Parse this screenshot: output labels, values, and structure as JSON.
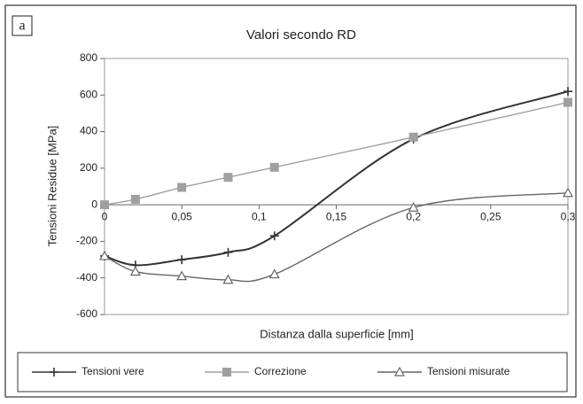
{
  "chart_data": {
    "type": "line",
    "title": "Valori secondo RD",
    "annotation": "a",
    "xlabel": "Distanza dalla superficie [mm]",
    "ylabel": "Tensioni Residue [MPa]",
    "x": [
      0,
      0.02,
      0.05,
      0.08,
      0.11,
      0.2,
      0.3
    ],
    "series": [
      {
        "name": "Tensioni vere",
        "color": "#333333",
        "marker": "plus",
        "values": [
          -280,
          -330,
          -300,
          -260,
          -170,
          360,
          620
        ]
      },
      {
        "name": "Correzione",
        "color": "#a0a0a0",
        "marker": "square",
        "values": [
          0,
          30,
          95,
          150,
          205,
          370,
          560
        ]
      },
      {
        "name": "Tensioni misurate",
        "color": "#666666",
        "marker": "triangle",
        "values": [
          -280,
          -365,
          -390,
          -410,
          -380,
          -15,
          65
        ]
      }
    ],
    "xlim": [
      0,
      0.3
    ],
    "xticks": [
      0,
      {
        "value": 0.05,
        "label": "0,05"
      },
      {
        "value": 0.1,
        "label": "0,1"
      },
      {
        "value": 0.15,
        "label": "0,15"
      },
      {
        "value": 0.2,
        "label": "0,2"
      },
      {
        "value": 0.25,
        "label": "0,25"
      },
      {
        "value": 0.3,
        "label": "0,3"
      }
    ],
    "ylim": [
      -600,
      800
    ],
    "yticks": [
      -600,
      -400,
      -200,
      0,
      200,
      400,
      600,
      800
    ],
    "legend": "bottom"
  }
}
